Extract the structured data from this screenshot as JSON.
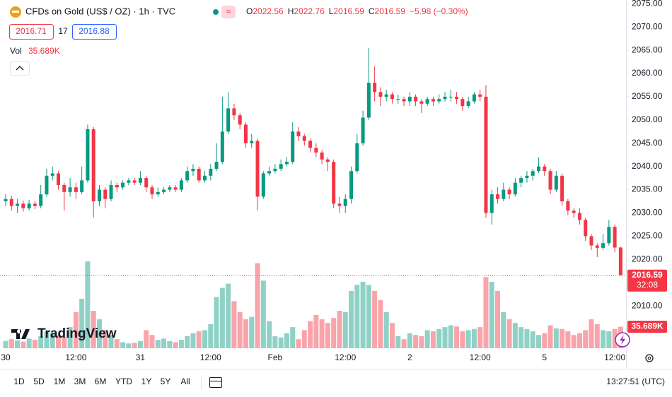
{
  "header": {
    "symbol": "CFDs on Gold (US$ / OZ) · 1h · TVC",
    "ohlc": [
      {
        "key": "O",
        "value": "2022.56"
      },
      {
        "key": "H",
        "value": "2022.76"
      },
      {
        "key": "L",
        "value": "2016.59"
      },
      {
        "key": "C",
        "value": "2016.59"
      }
    ],
    "change": "−5.98 (−0.30%)",
    "sell": "2016.71",
    "spread": "17",
    "buy": "2016.88",
    "vol_label": "Vol",
    "vol_value": "35.689K",
    "price_tag": "2016.59",
    "countdown": "32:08",
    "volume_tag": "35.689K",
    "logo": "TradingView",
    "periods": [
      "1D",
      "5D",
      "1M",
      "3M",
      "6M",
      "YTD",
      "1Y",
      "5Y",
      "All"
    ],
    "clock": "13:27:51 (UTC)"
  },
  "chart_data": {
    "type": "candlestick",
    "up_color": "#089981",
    "down_color": "#f23645",
    "ylim": [
      2000.9,
      2075.8
    ],
    "yticks": [
      {
        "value": 2075,
        "label": "2075.00"
      },
      {
        "value": 2070,
        "label": "2070.00"
      },
      {
        "value": 2065,
        "label": "2065.00"
      },
      {
        "value": 2060,
        "label": "2060.00"
      },
      {
        "value": 2055,
        "label": "2055.00"
      },
      {
        "value": 2050,
        "label": "2050.00"
      },
      {
        "value": 2045,
        "label": "2045.00"
      },
      {
        "value": 2040,
        "label": "2040.00"
      },
      {
        "value": 2035,
        "label": "2035.00"
      },
      {
        "value": 2030,
        "label": "2030.00"
      },
      {
        "value": 2025,
        "label": "2025.00"
      },
      {
        "value": 2020,
        "label": "2020.00"
      },
      {
        "value": 2015,
        "label": "2015.00"
      },
      {
        "value": 2010,
        "label": "2010.00"
      }
    ],
    "grid": false,
    "categories": [
      "30",
      null,
      null,
      null,
      null,
      null,
      null,
      null,
      null,
      null,
      null,
      null,
      "12:00",
      null,
      null,
      null,
      null,
      null,
      null,
      null,
      null,
      null,
      null,
      "31",
      null,
      null,
      null,
      null,
      null,
      null,
      null,
      null,
      null,
      null,
      null,
      "12:00",
      null,
      null,
      null,
      null,
      null,
      null,
      null,
      null,
      null,
      null,
      "Feb",
      null,
      null,
      null,
      null,
      null,
      null,
      null,
      null,
      null,
      null,
      null,
      "12:00",
      null,
      null,
      null,
      null,
      null,
      null,
      null,
      null,
      null,
      null,
      "2",
      null,
      null,
      null,
      null,
      null,
      null,
      null,
      null,
      null,
      null,
      null,
      "12:00",
      null,
      null,
      null,
      null,
      null,
      null,
      null,
      null,
      null,
      null,
      "5",
      null,
      null,
      null,
      null,
      null,
      null,
      null,
      null,
      null,
      null,
      null,
      "12:00",
      null
    ],
    "open": [
      2032.5,
      2033,
      2031.5,
      2032,
      2031,
      2032,
      2031.5,
      2034,
      2038,
      2038.5,
      2036,
      2034.5,
      2035.5,
      2034.5,
      2037,
      2048,
      2032.5,
      2035,
      2033,
      2036,
      2035.5,
      2036.5,
      2037,
      2036.5,
      2037.5,
      2035.5,
      2034,
      2034.5,
      2035,
      2035.5,
      2035,
      2037,
      2039,
      2039.5,
      2037,
      2038,
      2039.5,
      2041,
      2047.5,
      2052.5,
      2051,
      2049,
      2045,
      2045.5,
      2033.5,
      2038.5,
      2039,
      2039.5,
      2040.5,
      2041,
      2047.5,
      2046.5,
      2045.5,
      2044,
      2043,
      2041.5,
      2041,
      2032,
      2031.5,
      2033,
      2039,
      2045,
      2050.5,
      2058,
      2056,
      2055,
      2055.5,
      2054.5,
      2054.5,
      2054,
      2055,
      2054,
      2053.5,
      2054.5,
      2054,
      2054.5,
      2055,
      2055,
      2054.5,
      2053,
      2054,
      2055.5,
      2055,
      2030,
      2034,
      2033,
      2035,
      2034,
      2036.5,
      2037.5,
      2038,
      2039,
      2040,
      2039,
      2035,
      2038,
      2032.5,
      2030.5,
      2030,
      2028.5,
      2025,
      2023,
      2022.5,
      2023.5,
      2027,
      2022.56
    ],
    "high": [
      2034,
      2033.7,
      2033,
      2032.7,
      2032.8,
      2032.6,
      2036,
      2039.5,
      2040,
      2039,
      2036.5,
      2037.5,
      2036.5,
      2040,
      2049,
      2048.5,
      2036,
      2035.5,
      2037,
      2036.5,
      2037,
      2037.5,
      2037.5,
      2039,
      2038,
      2036,
      2035.5,
      2035.5,
      2036,
      2036,
      2037.5,
      2040,
      2040.5,
      2040,
      2039,
      2040.5,
      2045,
      2055,
      2056,
      2053.5,
      2051.5,
      2049.5,
      2047,
      2046,
      2039,
      2040,
      2040.5,
      2041.5,
      2042,
      2049.5,
      2048.5,
      2047,
      2046,
      2045,
      2043.5,
      2042,
      2041.5,
      2033.5,
      2034,
      2040,
      2047,
      2052,
      2065.5,
      2061.5,
      2057,
      2056.5,
      2056,
      2055.5,
      2055,
      2056,
      2055.5,
      2054.5,
      2055,
      2055,
      2055.5,
      2056,
      2056.5,
      2056,
      2055,
      2055,
      2056,
      2056.5,
      2057.5,
      2035,
      2035.5,
      2036.5,
      2035.5,
      2037.5,
      2038,
      2039,
      2039.5,
      2042,
      2040.5,
      2039.5,
      2039,
      2038.5,
      2033,
      2031,
      2031,
      2029,
      2025.5,
      2023.5,
      2025.5,
      2028.5,
      2027.5,
      2022.76
    ],
    "low": [
      2031.5,
      2030.5,
      2030,
      2030.3,
      2030.5,
      2030.8,
      2031,
      2033.5,
      2037,
      2035,
      2030.5,
      2033.5,
      2033,
      2034,
      2036.5,
      2029,
      2031.5,
      2031,
      2032.5,
      2034.5,
      2035,
      2036,
      2036,
      2036,
      2034.5,
      2033,
      2033.5,
      2034,
      2034.5,
      2034.5,
      2034.5,
      2036.5,
      2038,
      2036.5,
      2036.5,
      2037,
      2039,
      2040.5,
      2047,
      2050,
      2048,
      2044,
      2044,
      2030.5,
      2033,
      2038,
      2038.5,
      2039,
      2040,
      2040.5,
      2045.5,
      2044.5,
      2043,
      2042,
      2040.5,
      2039,
      2031,
      2030,
      2030,
      2032,
      2038.5,
      2044.5,
      2050,
      2054,
      2053,
      2054,
      2053.5,
      2053.5,
      2053,
      2053,
      2053,
      2051.5,
      2053,
      2053,
      2053.5,
      2054,
      2054,
      2053.5,
      2052,
      2052.5,
      2053.5,
      2054,
      2029,
      2027.5,
      2032,
      2032.5,
      2033,
      2033.5,
      2035.5,
      2036.5,
      2037,
      2038.5,
      2038,
      2034,
      2034.5,
      2031.5,
      2029.5,
      2029,
      2027.5,
      2024,
      2022,
      2020.5,
      2022,
      2023,
      2021.5,
      2016.59
    ],
    "close": [
      2033,
      2031.5,
      2032,
      2031,
      2032,
      2031.5,
      2034,
      2038,
      2038.5,
      2036,
      2034.5,
      2035.5,
      2034.5,
      2037,
      2048,
      2032.5,
      2035,
      2033,
      2036,
      2035.5,
      2036.5,
      2037,
      2036.5,
      2037.5,
      2035.5,
      2034,
      2034.5,
      2035,
      2035.5,
      2035,
      2037,
      2039,
      2039.5,
      2037,
      2038,
      2039.5,
      2041,
      2047.5,
      2052.5,
      2051,
      2049,
      2045,
      2045.5,
      2033.5,
      2038.5,
      2039,
      2039.5,
      2040.5,
      2041,
      2047.5,
      2046.5,
      2045.5,
      2044,
      2043,
      2041.5,
      2041,
      2032,
      2031.5,
      2033,
      2039,
      2045,
      2050.5,
      2058,
      2056,
      2055,
      2055.5,
      2054.5,
      2054.5,
      2054,
      2055,
      2054,
      2053.5,
      2054.5,
      2054,
      2054.5,
      2055,
      2055,
      2054.5,
      2053,
      2054,
      2055.5,
      2055,
      2030,
      2034,
      2033,
      2035,
      2034,
      2036.5,
      2037.5,
      2038,
      2039,
      2040,
      2039,
      2035,
      2038,
      2032.5,
      2030.5,
      2030,
      2028.5,
      2025,
      2023,
      2022.5,
      2023.5,
      2027,
      2022.56,
      2016.59
    ],
    "volume": [
      12,
      15,
      13,
      11,
      16,
      14,
      20,
      28,
      25,
      22,
      18,
      35,
      60,
      82,
      144,
      62,
      48,
      30,
      22,
      15,
      10,
      8,
      9,
      12,
      30,
      22,
      14,
      16,
      12,
      10,
      14,
      20,
      25,
      28,
      30,
      40,
      85,
      100,
      107,
      78,
      60,
      48,
      52,
      141,
      112,
      45,
      20,
      18,
      25,
      35,
      15,
      30,
      45,
      55,
      48,
      42,
      50,
      62,
      60,
      95,
      105,
      110,
      105,
      95,
      80,
      60,
      42,
      20,
      15,
      25,
      22,
      20,
      30,
      28,
      32,
      35,
      38,
      36,
      28,
      30,
      32,
      35,
      118,
      110,
      95,
      60,
      48,
      42,
      35,
      32,
      28,
      22,
      25,
      38,
      33,
      32,
      28,
      22,
      25,
      30,
      48,
      40,
      30,
      28,
      32,
      35.689
    ]
  }
}
